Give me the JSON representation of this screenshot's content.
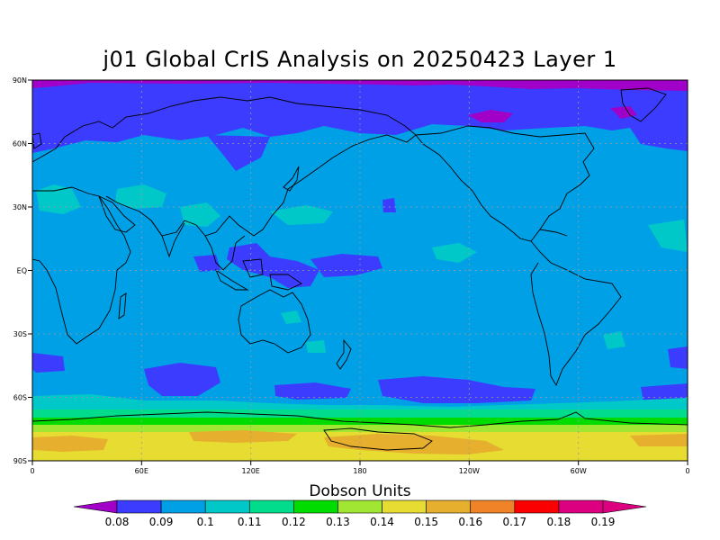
{
  "title": "j01 Global CrIS Analysis on 20250423 Layer 1",
  "map": {
    "lat_labels": [
      "90N",
      "60N",
      "30N",
      "EQ",
      "30S",
      "60S",
      "90S"
    ],
    "lon_labels": [
      "0",
      "60E",
      "120E",
      "180",
      "120W",
      "60W",
      "0"
    ],
    "colors": {
      "c008": "#a000c8",
      "c009": "#3c3cff",
      "c010": "#00a0e6",
      "c011": "#00c8c8",
      "c012": "#00dc8c",
      "c013": "#00dc00",
      "c014": "#a0e632",
      "c015": "#e6dc32",
      "c016": "#e6af2d",
      "c017": "#f08228",
      "c018": "#fa0000",
      "c019": "#dc0080"
    }
  },
  "colorbar": {
    "title": "Dobson Units",
    "labels": [
      "0.08",
      "0.09",
      "0.1",
      "0.11",
      "0.12",
      "0.13",
      "0.14",
      "0.15",
      "0.16",
      "0.17",
      "0.18",
      "0.19"
    ],
    "colors": [
      "#a000c8",
      "#3c3cff",
      "#00a0e6",
      "#00c8c8",
      "#00dc8c",
      "#00dc00",
      "#a0e632",
      "#e6dc32",
      "#e6af2d",
      "#f08228",
      "#fa0000",
      "#dc0080"
    ],
    "min_color": "#a000c8",
    "max_color": "#dc0080"
  }
}
